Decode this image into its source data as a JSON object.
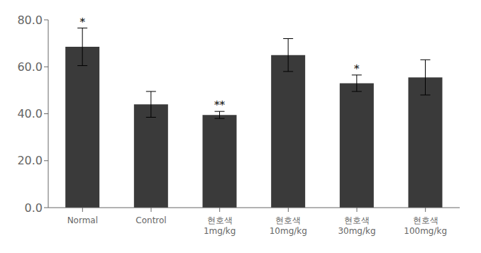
{
  "chart_data": {
    "type": "bar",
    "categories": [
      "Normal",
      "Control",
      "현호색\n1mg/kg",
      "현호색\n10mg/kg",
      "현호색\n30mg/kg",
      "현호색\n100mg/kg"
    ],
    "values": [
      68.5,
      44.0,
      39.5,
      65.0,
      53.0,
      55.5
    ],
    "errors": [
      8.0,
      5.5,
      1.5,
      7.0,
      3.5,
      7.5
    ],
    "color": "#3a3a3a",
    "ylim": [
      0,
      80.0
    ],
    "yticks": [
      {
        "value": 0.0,
        "label": "0.0"
      },
      {
        "value": 20.0,
        "label": "20.0"
      },
      {
        "value": 40.0,
        "label": "40.0"
      },
      {
        "value": 60.0,
        "label": "60.0"
      },
      {
        "value": 80.0,
        "label": "80.0"
      }
    ],
    "annotations": [
      {
        "category": "Normal",
        "text": "*"
      },
      {
        "category": "현호색\n1mg/kg",
        "text": "**"
      },
      {
        "category": "현호색\n30mg/kg",
        "text": "*"
      }
    ],
    "grid": false
  }
}
